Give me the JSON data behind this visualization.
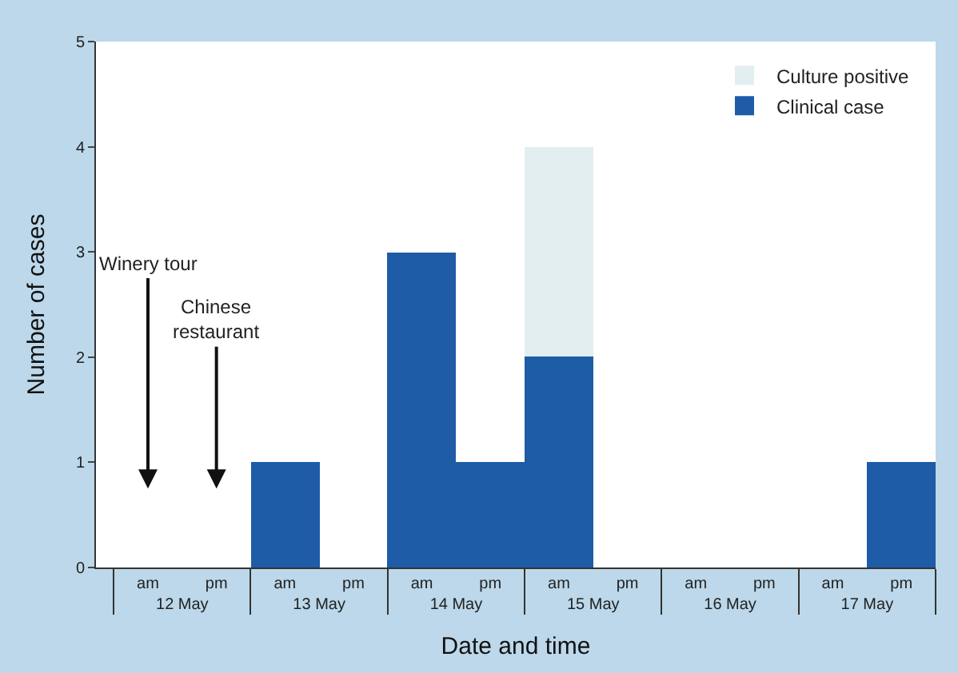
{
  "chart_data": {
    "type": "bar",
    "xlabel": "Date and time",
    "ylabel": "Number of cases",
    "categories": [
      "am",
      "pm",
      "am",
      "pm",
      "am",
      "pm",
      "am",
      "pm",
      "am",
      "pm",
      "am",
      "pm"
    ],
    "series": [
      {
        "name": "Clinical case",
        "color": "#1f5ca8",
        "values": [
          0,
          0,
          1,
          0,
          3,
          1,
          2,
          0,
          0,
          0,
          0,
          1
        ]
      },
      {
        "name": "Culture positive",
        "color": "#e3eef0",
        "values": [
          0,
          0,
          0,
          0,
          0,
          0,
          2,
          0,
          0,
          0,
          0,
          0
        ]
      }
    ],
    "stacked": true,
    "ylim": [
      0,
      5
    ],
    "yticks": [
      0,
      1,
      2,
      3,
      4,
      5
    ],
    "legend": "top right",
    "annotations": [
      "12 May",
      "13 May",
      "14 May",
      "15 May",
      "16 May",
      "17 May",
      "Winery tour",
      "Chinese restaurant"
    ]
  }
}
